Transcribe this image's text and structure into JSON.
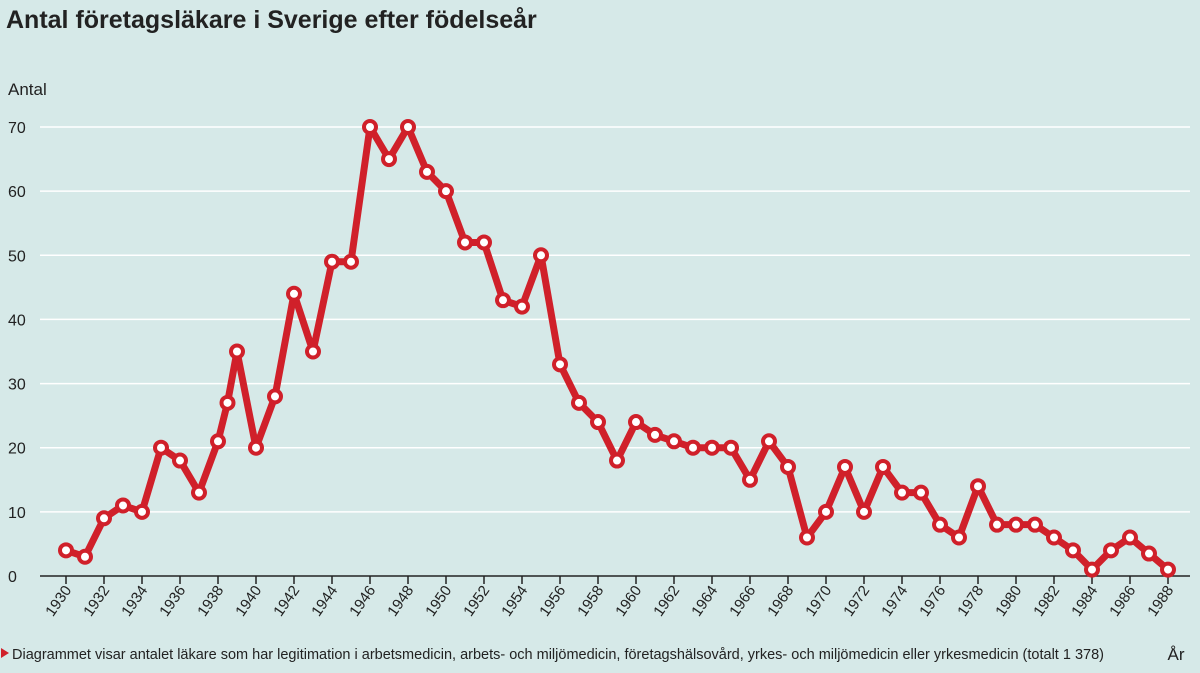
{
  "chart_data": {
    "type": "line",
    "title": "Antal företagsläkare i Sverige efter födelseår",
    "y_label": "Antal",
    "x_label": "År",
    "footnote": "Diagrammet visar antalet läkare som har legitimation i arbetsmedicin, arbets- och miljömedicin, företagshälsovård, yrkes- och miljömedicin eller yrkesmedicin (totalt 1 378)",
    "x": [
      1930,
      1931,
      1932,
      1933,
      1934,
      1935,
      1936,
      1937,
      1938,
      1938.5,
      1939,
      1940,
      1941,
      1942,
      1943,
      1944,
      1945,
      1946,
      1947,
      1948,
      1949,
      1950,
      1951,
      1952,
      1953,
      1954,
      1955,
      1956,
      1957,
      1958,
      1959,
      1960,
      1961,
      1962,
      1963,
      1964,
      1965,
      1966,
      1967,
      1968,
      1969,
      1970,
      1971,
      1972,
      1973,
      1974,
      1975,
      1976,
      1977,
      1978,
      1979,
      1980,
      1981,
      1982,
      1983,
      1984,
      1985,
      1986,
      1987,
      1988
    ],
    "series": [
      {
        "color": "#d0202a",
        "values": [
          4,
          3,
          9,
          11,
          10,
          20,
          18,
          13,
          21,
          27,
          35,
          20,
          28,
          44,
          35,
          49,
          49,
          70,
          65,
          70,
          63,
          60,
          52,
          52,
          43,
          42,
          50,
          33,
          27,
          24,
          18,
          24,
          22,
          21,
          20,
          20,
          20,
          15,
          21,
          17,
          6,
          10,
          17,
          10,
          17,
          13,
          13,
          8,
          6,
          14,
          8,
          8,
          8,
          6,
          4,
          1,
          4,
          6,
          3.5,
          1
        ]
      }
    ],
    "xlim": [
      1930,
      1988
    ],
    "xticks": [
      1930,
      1932,
      1934,
      1936,
      1938,
      1940,
      1942,
      1944,
      1946,
      1948,
      1950,
      1952,
      1954,
      1956,
      1958,
      1960,
      1962,
      1964,
      1966,
      1968,
      1970,
      1972,
      1974,
      1976,
      1978,
      1980,
      1982,
      1984,
      1986,
      1988
    ],
    "ylim": [
      0,
      70
    ],
    "yticks": [
      0,
      10,
      20,
      30,
      40,
      50,
      60,
      70
    ],
    "grid": true
  }
}
